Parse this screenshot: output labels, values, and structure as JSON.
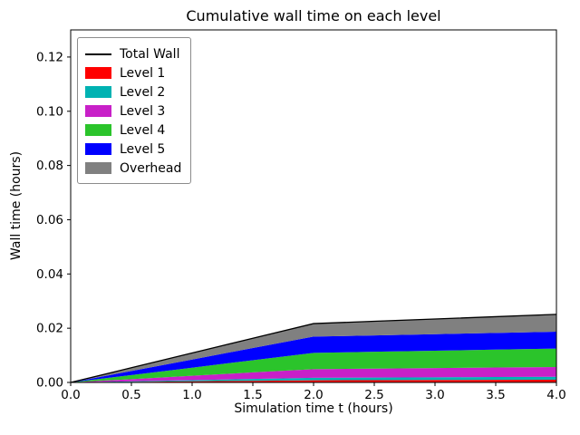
{
  "chart_data": {
    "type": "area",
    "title": "Cumulative wall time on each level",
    "xlabel": "Simulation time t (hours)",
    "ylabel": "Wall time (hours)",
    "xlim": [
      0,
      4
    ],
    "ylim": [
      0,
      0.13
    ],
    "xticks": [
      0,
      0.5,
      1,
      1.5,
      2,
      2.5,
      3,
      3.5,
      4
    ],
    "xtick_labels": [
      "0.0",
      "0.5",
      "1.0",
      "1.5",
      "2.0",
      "2.5",
      "3.0",
      "3.5",
      "4.0"
    ],
    "yticks": [
      0,
      0.02,
      0.04,
      0.06,
      0.08,
      0.1,
      0.12
    ],
    "ytick_labels": [
      "0.00",
      "0.02",
      "0.04",
      "0.06",
      "0.08",
      "0.10",
      "0.12"
    ],
    "grid": false,
    "legend_position": "upper left",
    "x": [
      0,
      0.5,
      1,
      1.5,
      2,
      2.5,
      3,
      3.5,
      4
    ],
    "series": [
      {
        "name": "Level 1",
        "color": "#ff0000",
        "values": [
          0,
          0.0002,
          0.0004,
          0.0006,
          0.0008,
          0.00085,
          0.0009,
          0.00095,
          0.001
        ]
      },
      {
        "name": "Level 2",
        "color": "#00b2b2",
        "values": [
          0,
          0.00022,
          0.00045,
          0.0007,
          0.0009,
          0.00095,
          0.001,
          0.00105,
          0.0011
        ]
      },
      {
        "name": "Level 3",
        "color": "#c820c8",
        "values": [
          0,
          0.0008,
          0.0016,
          0.0024,
          0.0032,
          0.0033,
          0.0034,
          0.0035,
          0.0036
        ]
      },
      {
        "name": "Level 4",
        "color": "#2bc42b",
        "values": [
          0,
          0.0015,
          0.003,
          0.0045,
          0.006,
          0.0062,
          0.0064,
          0.0066,
          0.0068
        ]
      },
      {
        "name": "Level 5",
        "color": "#0000ff",
        "values": [
          0,
          0.0015,
          0.003,
          0.0045,
          0.006,
          0.00605,
          0.0061,
          0.00615,
          0.0062
        ]
      },
      {
        "name": "Overhead",
        "color": "#808080",
        "values": [
          0,
          0.0012,
          0.0024,
          0.0036,
          0.0048,
          0.0052,
          0.0056,
          0.006,
          0.0064
        ]
      }
    ],
    "total_line": {
      "name": "Total Wall",
      "color": "#000000"
    }
  },
  "colors": {
    "background": "#ffffff",
    "axes": "#000000"
  }
}
